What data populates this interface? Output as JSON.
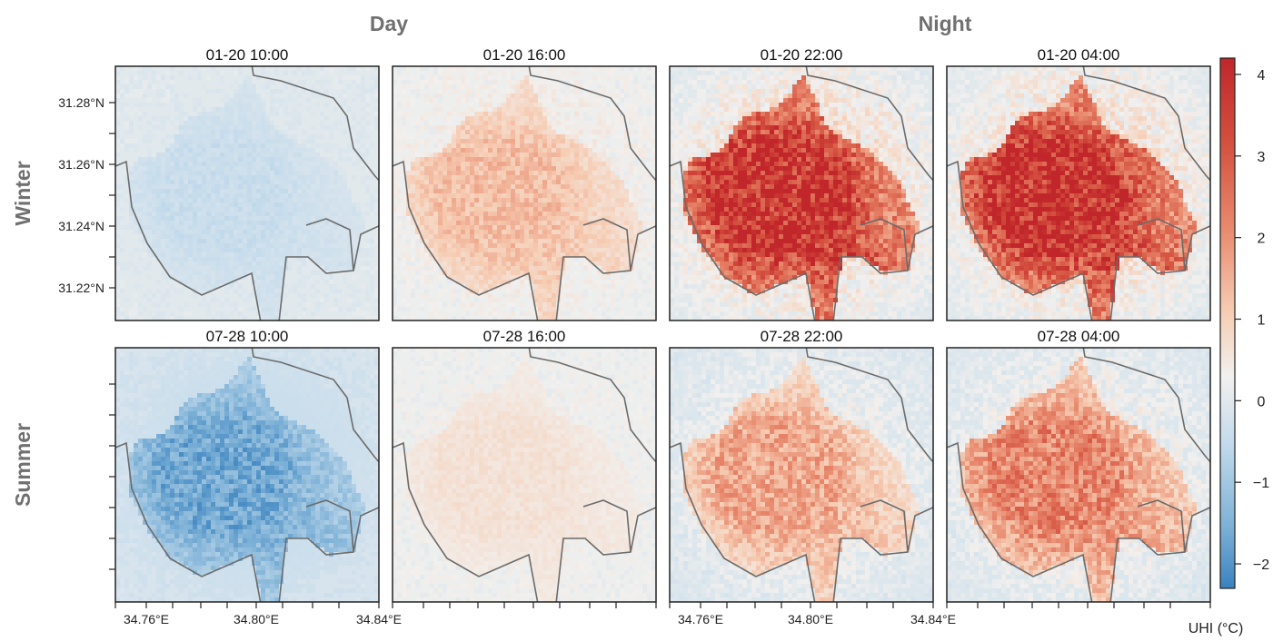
{
  "column_headers": [
    "Day",
    "Night"
  ],
  "row_labels": [
    "Winter",
    "Summer"
  ],
  "colorbar": {
    "label": "UHI (°C)",
    "range": [
      -2.3,
      4.2
    ],
    "ticks": [
      "4",
      "3",
      "2",
      "1",
      "0",
      "−1",
      "−2"
    ],
    "tick_values": [
      4,
      3,
      2,
      1,
      0,
      -1,
      -2
    ],
    "colors": {
      "low": "#3a82bf",
      "mid": "#f2f0ee",
      "high": "#c1262a"
    }
  },
  "x_ticks": [
    "34.76°E",
    "34.80°E",
    "34.84°E"
  ],
  "y_ticks": [
    "31.28°N",
    "31.26°N",
    "31.24°N",
    "31.22°N"
  ],
  "chart_data": [
    {
      "type": "heatmap",
      "title": "01-20 10:00",
      "season": "Winter",
      "period": "Day",
      "urban_uhi": -0.4,
      "background_uhi": 0.0
    },
    {
      "type": "heatmap",
      "title": "01-20 16:00",
      "season": "Winter",
      "period": "Day",
      "urban_uhi": 1.2,
      "background_uhi": 0.2
    },
    {
      "type": "heatmap",
      "title": "01-20 22:00",
      "season": "Winter",
      "period": "Night",
      "urban_uhi": 3.6,
      "background_uhi": 0.0
    },
    {
      "type": "heatmap",
      "title": "01-20 04:00",
      "season": "Winter",
      "period": "Night",
      "urban_uhi": 3.6,
      "background_uhi": 0.0
    },
    {
      "type": "heatmap",
      "title": "07-28 10:00",
      "season": "Summer",
      "period": "Day",
      "urban_uhi": -1.5,
      "background_uhi": -0.2
    },
    {
      "type": "heatmap",
      "title": "07-28 16:00",
      "season": "Summer",
      "period": "Day",
      "urban_uhi": 0.6,
      "background_uhi": 0.2
    },
    {
      "type": "heatmap",
      "title": "07-28 22:00",
      "season": "Summer",
      "period": "Night",
      "urban_uhi": 1.5,
      "background_uhi": -0.1
    },
    {
      "type": "heatmap",
      "title": "07-28 04:00",
      "season": "Summer",
      "period": "Night",
      "urban_uhi": 2.0,
      "background_uhi": -0.1
    }
  ]
}
